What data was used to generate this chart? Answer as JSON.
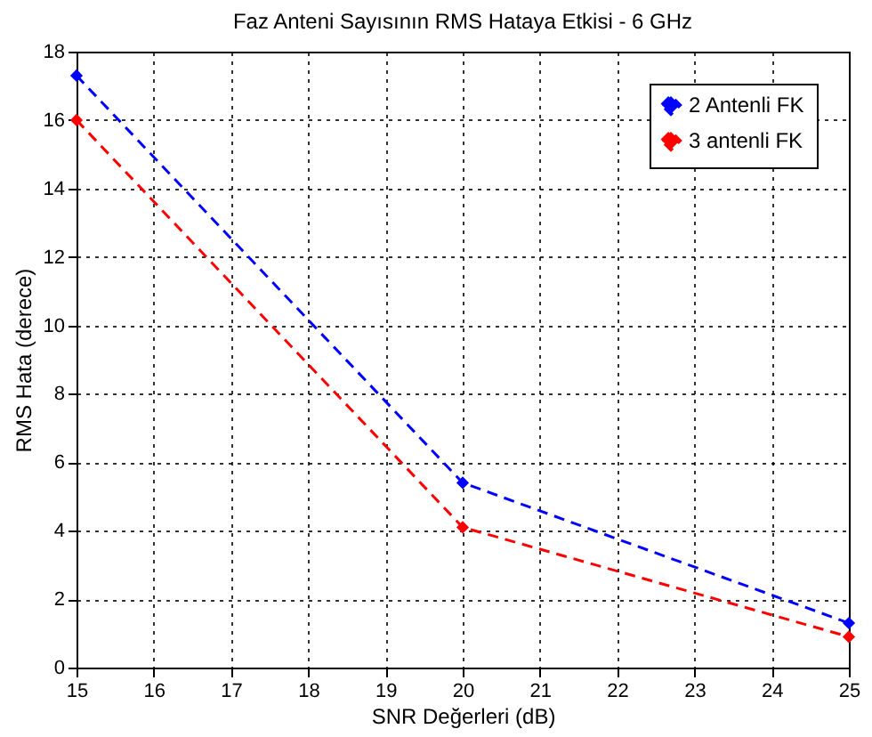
{
  "chart_data": {
    "type": "line",
    "title": "Faz Anteni Sayısının RMS Hataya Etkisi - 6 GHz",
    "xlabel": "SNR Değerleri (dB)",
    "ylabel": "RMS Hata (derece)",
    "x": [
      15,
      20,
      25
    ],
    "series": [
      {
        "name": "2 Antenli FK",
        "color": "#0000ff",
        "values": [
          17.3,
          5.4,
          1.3
        ]
      },
      {
        "name": "3 antenli FK",
        "color": "#ff0000",
        "values": [
          16.0,
          4.1,
          0.9
        ]
      }
    ],
    "xlim": [
      15,
      25
    ],
    "xticks": [
      15,
      16,
      17,
      18,
      19,
      20,
      21,
      22,
      23,
      24,
      25
    ],
    "ylim": [
      0,
      18
    ],
    "yticks": [
      0,
      2,
      4,
      6,
      8,
      10,
      12,
      14,
      16,
      18
    ],
    "grid": true,
    "legend": "top right",
    "marker": "diamond",
    "line_style": "dashed"
  }
}
